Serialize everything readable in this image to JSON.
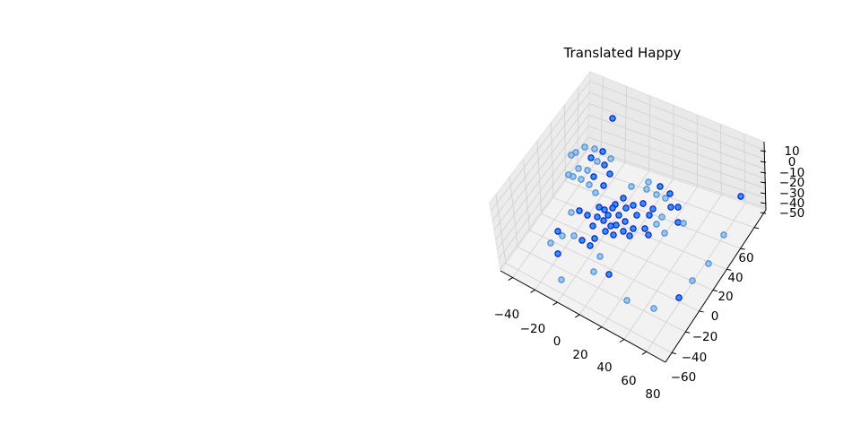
{
  "chart_data": {
    "type": "scatter",
    "projection": "3d",
    "title": "Translated Happy",
    "xlabel": "",
    "ylabel": "",
    "zlabel": "",
    "xlim": [
      -50,
      90
    ],
    "ylim": [
      -65,
      75
    ],
    "zlim": [
      -55,
      15
    ],
    "x_ticks": [
      "−40",
      "−20",
      "0",
      "20",
      "40",
      "60",
      "80"
    ],
    "y_ticks": [
      "−60",
      "−40",
      "−20",
      "0",
      "20",
      "40",
      "60"
    ],
    "z_ticks": [
      "−50",
      "−40",
      "−30",
      "−20",
      "−10",
      "0",
      "10"
    ],
    "grid": true,
    "marker_color": "#1e90ff",
    "edge_color": "#0000cd",
    "points_approx_count": 82
  }
}
